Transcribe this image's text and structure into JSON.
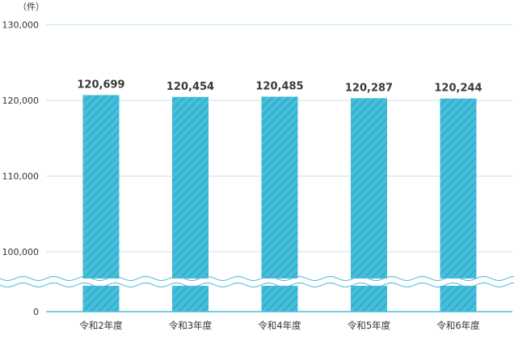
{
  "chart_data": {
    "type": "bar",
    "unit_label": "（件）",
    "categories": [
      "令和2年度",
      "令和3年度",
      "令和4年度",
      "令和5年度",
      "令和6年度"
    ],
    "values": [
      120699,
      120454,
      120485,
      120287,
      120244
    ],
    "value_labels": [
      "120,699",
      "120,454",
      "120,485",
      "120,287",
      "120,244"
    ],
    "y_ticks": [
      {
        "value": 0,
        "label": "0"
      },
      {
        "value": 100000,
        "label": "100,000"
      },
      {
        "value": 110000,
        "label": "110,000"
      },
      {
        "value": 120000,
        "label": "120,000"
      },
      {
        "value": 130000,
        "label": "130,000"
      }
    ],
    "ylim": [
      95000,
      130000
    ],
    "axis_break": true,
    "grid": true,
    "colors": {
      "bar": "#45bfdc",
      "bar_stripe": "#36acc9",
      "grid": "#bfe6f0",
      "baseline": "#45bfdc",
      "break_line": "#4fb6d3"
    }
  }
}
